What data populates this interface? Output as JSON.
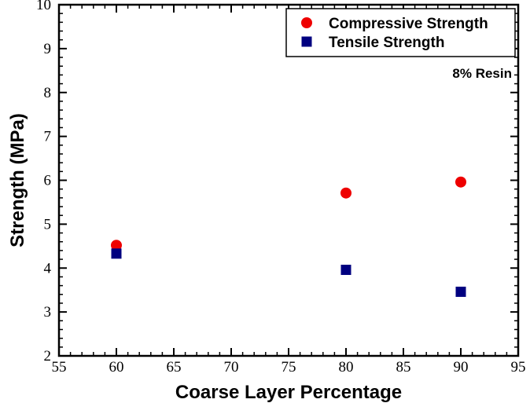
{
  "chart_data": {
    "type": "scatter",
    "title": "",
    "xlabel": "Coarse Layer Percentage",
    "ylabel": "Strength (MPa)",
    "xlim": [
      55,
      95
    ],
    "ylim": [
      2,
      10
    ],
    "xticks": [
      55,
      60,
      65,
      70,
      75,
      80,
      85,
      90,
      95
    ],
    "yticks": [
      2,
      3,
      4,
      5,
      6,
      7,
      8,
      9,
      10
    ],
    "grid": false,
    "legend_position": "top-right",
    "annotation": "8% Resin",
    "series": [
      {
        "name": "Compressive Strength",
        "marker": "circle",
        "color": "#ee0000",
        "x": [
          60,
          80,
          90
        ],
        "y": [
          4.52,
          5.71,
          5.96
        ]
      },
      {
        "name": "Tensile Strength",
        "marker": "square",
        "color": "#000080",
        "x": [
          60,
          80,
          90
        ],
        "y": [
          4.33,
          3.96,
          3.46
        ]
      }
    ]
  }
}
